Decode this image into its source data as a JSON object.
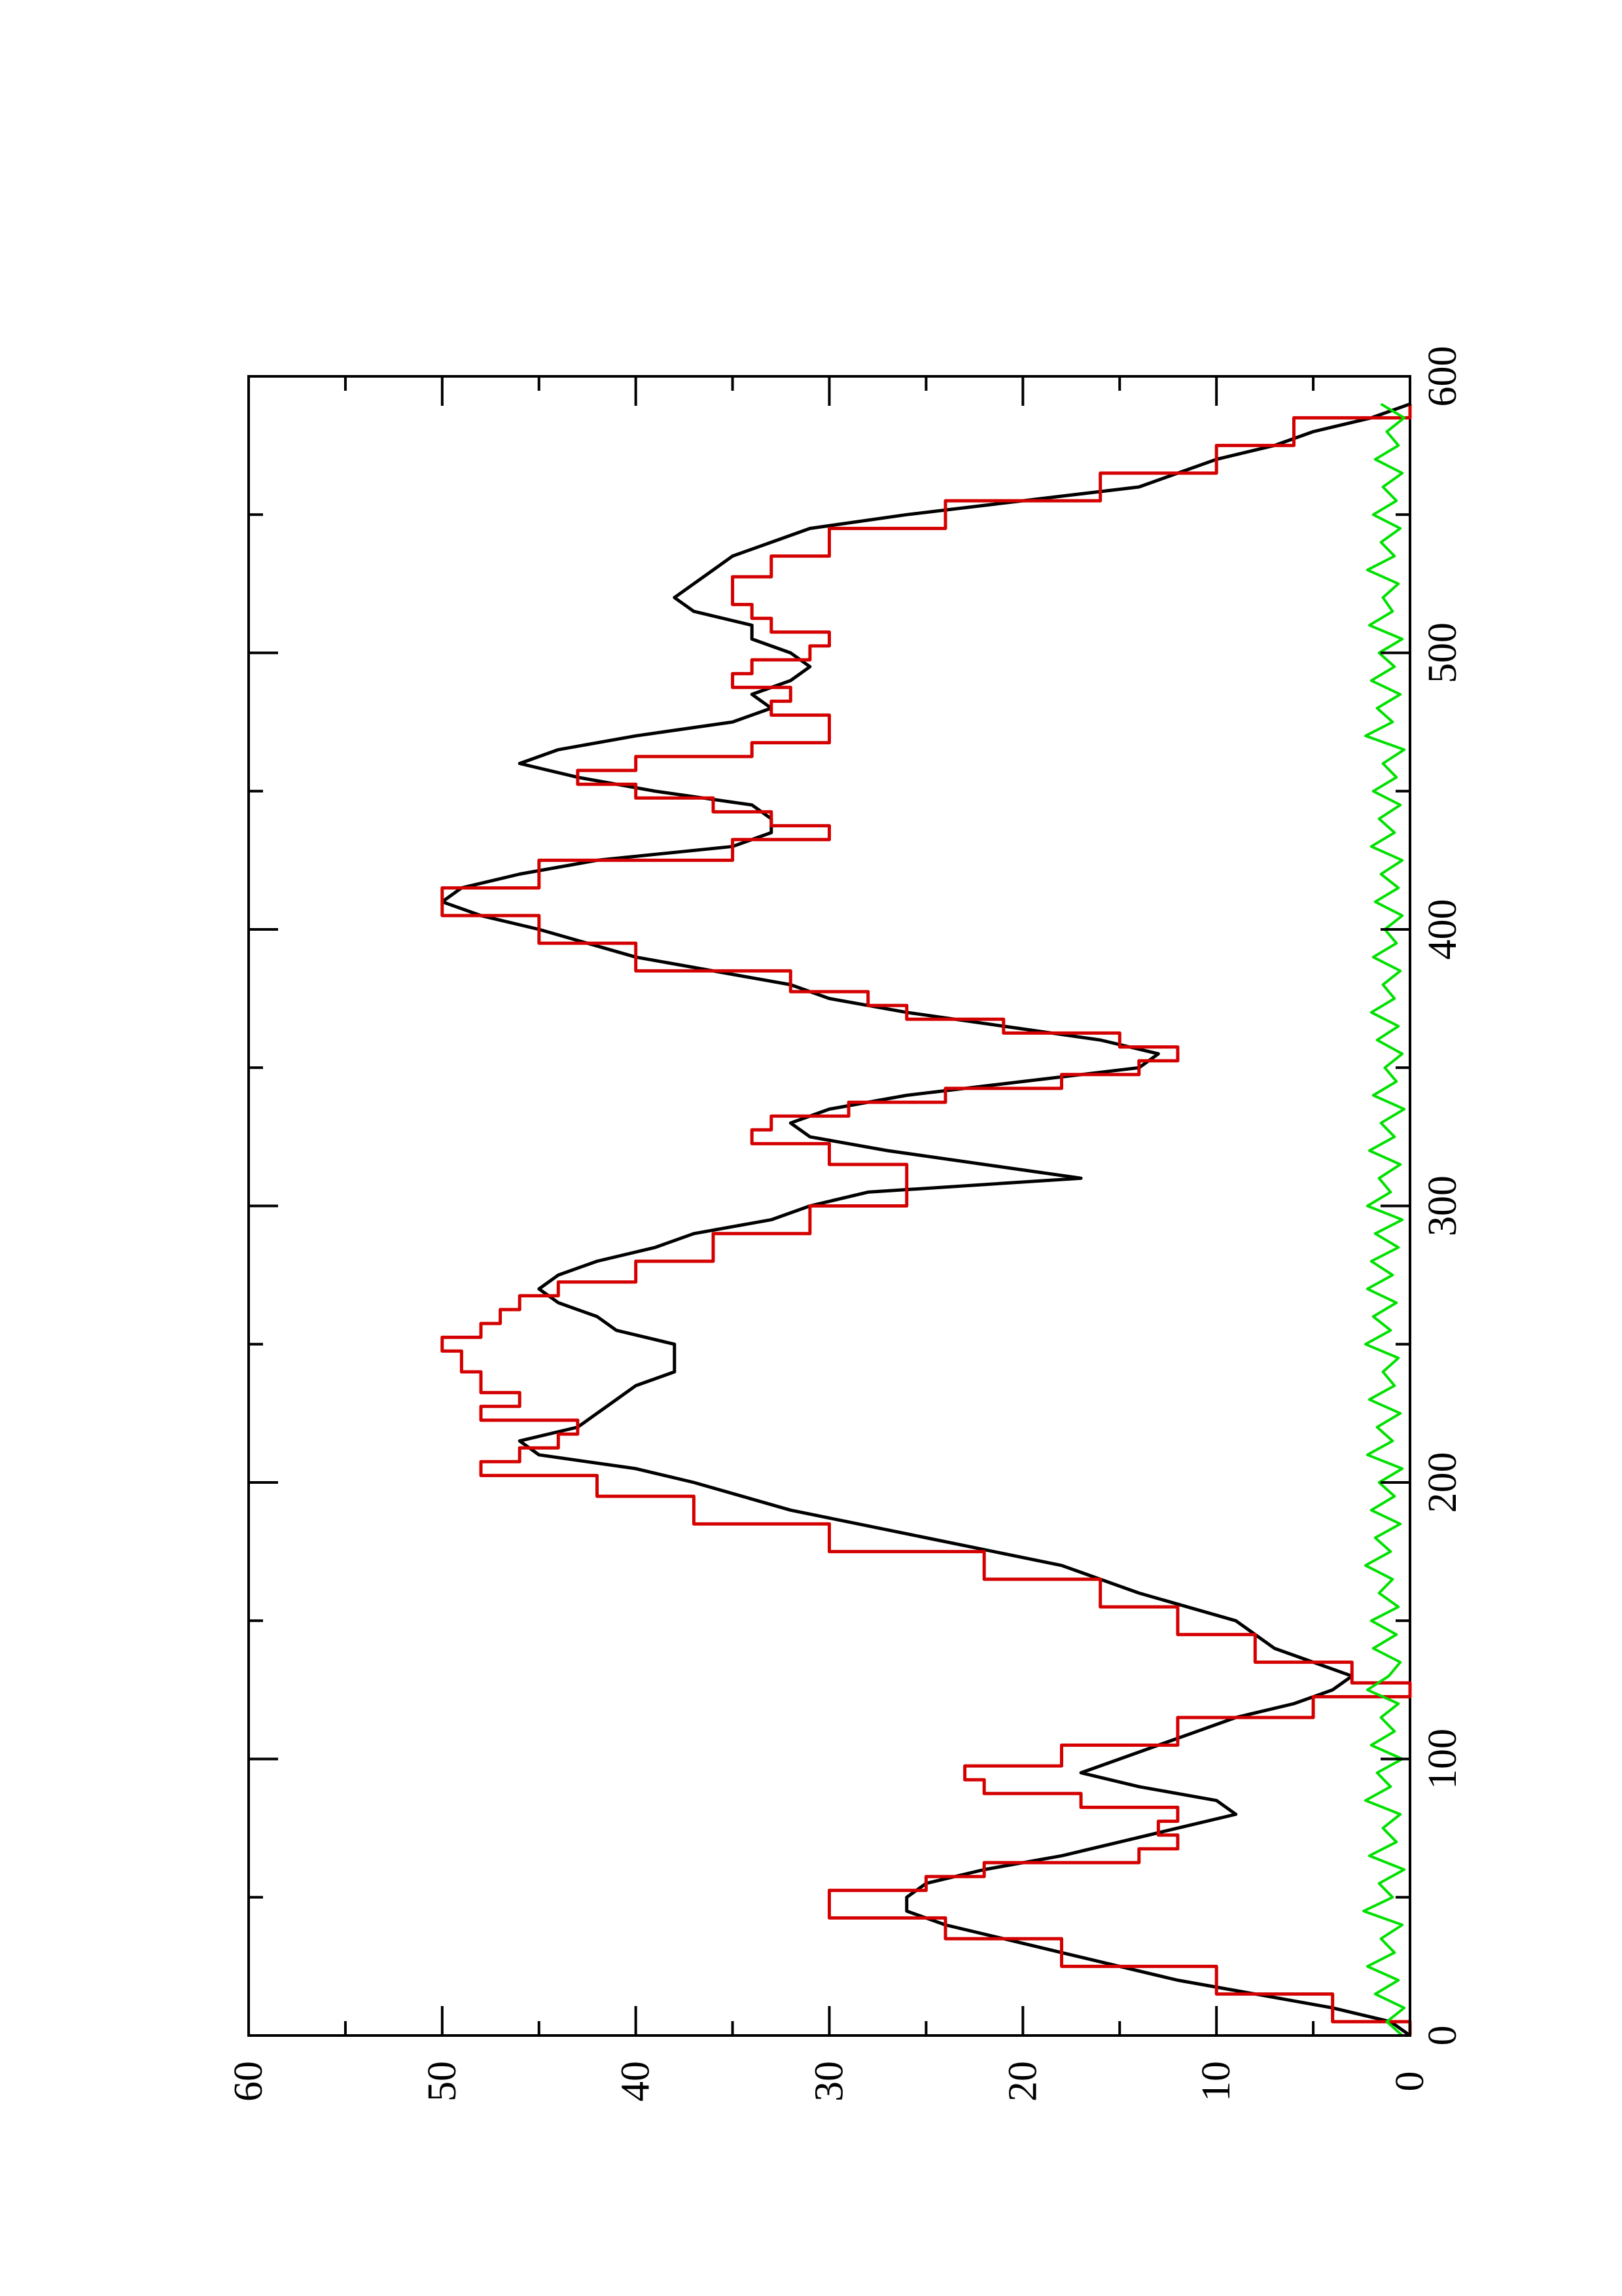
{
  "chart_data": {
    "type": "line",
    "title": "",
    "xlabel": "",
    "ylabel": "",
    "xlim": [
      0,
      600
    ],
    "ylim": [
      0,
      60
    ],
    "x_ticks": [
      0,
      100,
      200,
      300,
      400,
      500,
      600
    ],
    "y_ticks": [
      0,
      10,
      20,
      30,
      40,
      50,
      60
    ],
    "orientation": "rotated 90 degrees counter-clockwise",
    "grid": false,
    "legend": "none",
    "colors": {
      "black": "#000000",
      "red": "#d40000",
      "green": "#00e000"
    },
    "series": [
      {
        "color": "#000000",
        "style": "smooth",
        "points": [
          [
            0,
            0
          ],
          [
            5,
            1
          ],
          [
            10,
            4
          ],
          [
            15,
            8
          ],
          [
            20,
            12
          ],
          [
            25,
            15
          ],
          [
            30,
            18
          ],
          [
            35,
            21
          ],
          [
            40,
            24
          ],
          [
            45,
            26
          ],
          [
            50,
            26
          ],
          [
            55,
            25
          ],
          [
            60,
            22
          ],
          [
            65,
            18
          ],
          [
            70,
            15
          ],
          [
            75,
            12
          ],
          [
            80,
            9
          ],
          [
            85,
            10
          ],
          [
            90,
            14
          ],
          [
            95,
            17
          ],
          [
            100,
            15
          ],
          [
            105,
            13
          ],
          [
            110,
            11
          ],
          [
            115,
            9
          ],
          [
            120,
            6
          ],
          [
            125,
            4
          ],
          [
            130,
            3
          ],
          [
            135,
            5
          ],
          [
            140,
            7
          ],
          [
            150,
            9
          ],
          [
            160,
            14
          ],
          [
            170,
            18
          ],
          [
            180,
            25
          ],
          [
            190,
            32
          ],
          [
            200,
            37
          ],
          [
            205,
            40
          ],
          [
            210,
            45
          ],
          [
            215,
            46
          ],
          [
            220,
            43
          ],
          [
            225,
            42
          ],
          [
            230,
            41
          ],
          [
            235,
            40
          ],
          [
            240,
            38
          ],
          [
            245,
            38
          ],
          [
            250,
            38
          ],
          [
            255,
            41
          ],
          [
            260,
            42
          ],
          [
            265,
            44
          ],
          [
            270,
            45
          ],
          [
            275,
            44
          ],
          [
            280,
            42
          ],
          [
            285,
            39
          ],
          [
            290,
            37
          ],
          [
            295,
            33
          ],
          [
            300,
            31
          ],
          [
            305,
            28
          ],
          [
            310,
            17
          ],
          [
            315,
            22
          ],
          [
            320,
            27
          ],
          [
            325,
            31
          ],
          [
            330,
            32
          ],
          [
            335,
            30
          ],
          [
            340,
            26
          ],
          [
            345,
            20
          ],
          [
            350,
            14
          ],
          [
            355,
            13
          ],
          [
            360,
            16
          ],
          [
            365,
            21
          ],
          [
            370,
            26
          ],
          [
            375,
            30
          ],
          [
            380,
            32
          ],
          [
            390,
            40
          ],
          [
            400,
            45
          ],
          [
            405,
            48
          ],
          [
            410,
            50
          ],
          [
            415,
            49
          ],
          [
            420,
            46
          ],
          [
            425,
            42
          ],
          [
            430,
            35
          ],
          [
            435,
            33
          ],
          [
            440,
            33
          ],
          [
            445,
            34
          ],
          [
            450,
            39
          ],
          [
            455,
            43
          ],
          [
            460,
            46
          ],
          [
            465,
            44
          ],
          [
            470,
            40
          ],
          [
            475,
            35
          ],
          [
            480,
            33
          ],
          [
            485,
            34
          ],
          [
            490,
            32
          ],
          [
            495,
            31
          ],
          [
            500,
            32
          ],
          [
            505,
            34
          ],
          [
            510,
            34
          ],
          [
            515,
            37
          ],
          [
            520,
            38
          ],
          [
            525,
            37
          ],
          [
            530,
            36
          ],
          [
            535,
            35
          ],
          [
            540,
            33
          ],
          [
            545,
            31
          ],
          [
            550,
            26
          ],
          [
            555,
            20
          ],
          [
            560,
            14
          ],
          [
            565,
            12
          ],
          [
            570,
            10
          ],
          [
            575,
            7
          ],
          [
            580,
            5
          ],
          [
            585,
            2
          ],
          [
            590,
            0
          ]
        ]
      },
      {
        "color": "#d40000",
        "style": "step",
        "points": [
          [
            0,
            0
          ],
          [
            10,
            4
          ],
          [
            20,
            10
          ],
          [
            30,
            18
          ],
          [
            40,
            24
          ],
          [
            45,
            30
          ],
          [
            50,
            30
          ],
          [
            55,
            25
          ],
          [
            60,
            22
          ],
          [
            65,
            14
          ],
          [
            70,
            12
          ],
          [
            75,
            13
          ],
          [
            80,
            12
          ],
          [
            85,
            17
          ],
          [
            90,
            22
          ],
          [
            95,
            23
          ],
          [
            100,
            18
          ],
          [
            110,
            12
          ],
          [
            120,
            5
          ],
          [
            125,
            0
          ],
          [
            130,
            3
          ],
          [
            140,
            8
          ],
          [
            150,
            12
          ],
          [
            160,
            16
          ],
          [
            170,
            22
          ],
          [
            180,
            30
          ],
          [
            190,
            37
          ],
          [
            200,
            42
          ],
          [
            205,
            48
          ],
          [
            210,
            46
          ],
          [
            215,
            44
          ],
          [
            220,
            43
          ],
          [
            225,
            48
          ],
          [
            230,
            46
          ],
          [
            235,
            48
          ],
          [
            245,
            49
          ],
          [
            250,
            50
          ],
          [
            255,
            48
          ],
          [
            260,
            47
          ],
          [
            265,
            46
          ],
          [
            270,
            44
          ],
          [
            275,
            40
          ],
          [
            285,
            36
          ],
          [
            295,
            31
          ],
          [
            305,
            26
          ],
          [
            310,
            26
          ],
          [
            320,
            30
          ],
          [
            325,
            34
          ],
          [
            330,
            33
          ],
          [
            335,
            29
          ],
          [
            340,
            24
          ],
          [
            345,
            18
          ],
          [
            350,
            14
          ],
          [
            355,
            12
          ],
          [
            360,
            15
          ],
          [
            365,
            21
          ],
          [
            370,
            26
          ],
          [
            375,
            28
          ],
          [
            380,
            32
          ],
          [
            390,
            40
          ],
          [
            400,
            45
          ],
          [
            410,
            50
          ],
          [
            420,
            45
          ],
          [
            430,
            35
          ],
          [
            435,
            30
          ],
          [
            440,
            33
          ],
          [
            445,
            36
          ],
          [
            450,
            40
          ],
          [
            455,
            43
          ],
          [
            460,
            40
          ],
          [
            465,
            34
          ],
          [
            470,
            30
          ],
          [
            475,
            30
          ],
          [
            480,
            33
          ],
          [
            485,
            32
          ],
          [
            490,
            35
          ],
          [
            495,
            34
          ],
          [
            500,
            31
          ],
          [
            505,
            30
          ],
          [
            510,
            33
          ],
          [
            515,
            34
          ],
          [
            520,
            35
          ],
          [
            525,
            35
          ],
          [
            530,
            33
          ],
          [
            540,
            30
          ],
          [
            550,
            24
          ],
          [
            560,
            16
          ],
          [
            570,
            10
          ],
          [
            580,
            6
          ],
          [
            590,
            0
          ]
        ]
      },
      {
        "color": "#00e000",
        "style": "noise",
        "points": [
          [
            0,
            0.4
          ],
          [
            5,
            1.2
          ],
          [
            10,
            0.3
          ],
          [
            15,
            1.8
          ],
          [
            20,
            0.6
          ],
          [
            25,
            2.2
          ],
          [
            30,
            0.8
          ],
          [
            35,
            1.5
          ],
          [
            40,
            0.4
          ],
          [
            45,
            2.4
          ],
          [
            50,
            0.9
          ],
          [
            55,
            1.6
          ],
          [
            60,
            0.3
          ],
          [
            65,
            2.1
          ],
          [
            70,
            0.7
          ],
          [
            75,
            1.4
          ],
          [
            80,
            0.5
          ],
          [
            85,
            2.3
          ],
          [
            90,
            1.0
          ],
          [
            95,
            1.7
          ],
          [
            100,
            0.4
          ],
          [
            105,
            2.0
          ],
          [
            110,
            0.8
          ],
          [
            115,
            1.5
          ],
          [
            120,
            0.6
          ],
          [
            125,
            2.2
          ],
          [
            130,
            1.1
          ],
          [
            135,
            0.5
          ],
          [
            140,
            1.9
          ],
          [
            145,
            0.7
          ],
          [
            150,
            2.0
          ],
          [
            155,
            0.6
          ],
          [
            160,
            1.6
          ],
          [
            165,
            0.9
          ],
          [
            170,
            2.3
          ],
          [
            175,
            1.0
          ],
          [
            180,
            1.8
          ],
          [
            185,
            0.5
          ],
          [
            190,
            2.0
          ],
          [
            195,
            0.8
          ],
          [
            200,
            1.6
          ],
          [
            205,
            0.4
          ],
          [
            210,
            2.2
          ],
          [
            215,
            0.9
          ],
          [
            220,
            1.7
          ],
          [
            225,
            0.5
          ],
          [
            230,
            2.1
          ],
          [
            235,
            0.8
          ],
          [
            240,
            1.4
          ],
          [
            245,
            0.6
          ],
          [
            250,
            2.3
          ],
          [
            255,
            1.0
          ],
          [
            260,
            1.9
          ],
          [
            265,
            0.7
          ],
          [
            270,
            2.2
          ],
          [
            275,
            0.9
          ],
          [
            280,
            2.0
          ],
          [
            285,
            0.6
          ],
          [
            290,
            1.8
          ],
          [
            295,
            0.4
          ],
          [
            300,
            2.2
          ],
          [
            305,
            1.0
          ],
          [
            310,
            1.6
          ],
          [
            315,
            0.5
          ],
          [
            320,
            2.1
          ],
          [
            325,
            0.8
          ],
          [
            330,
            1.5
          ],
          [
            335,
            0.3
          ],
          [
            340,
            1.9
          ],
          [
            345,
            0.7
          ],
          [
            350,
            1.3
          ],
          [
            355,
            0.4
          ],
          [
            360,
            1.7
          ],
          [
            365,
            0.6
          ],
          [
            370,
            2.0
          ],
          [
            375,
            0.8
          ],
          [
            380,
            1.4
          ],
          [
            385,
            0.5
          ],
          [
            390,
            1.9
          ],
          [
            395,
            0.7
          ],
          [
            400,
            1.3
          ],
          [
            405,
            0.4
          ],
          [
            410,
            1.8
          ],
          [
            415,
            0.6
          ],
          [
            420,
            1.5
          ],
          [
            425,
            0.4
          ],
          [
            430,
            2.0
          ],
          [
            435,
            0.8
          ],
          [
            440,
            1.6
          ],
          [
            445,
            0.5
          ],
          [
            450,
            1.9
          ],
          [
            455,
            0.7
          ],
          [
            460,
            1.4
          ],
          [
            465,
            0.3
          ],
          [
            470,
            2.3
          ],
          [
            475,
            0.9
          ],
          [
            480,
            1.7
          ],
          [
            485,
            0.5
          ],
          [
            490,
            2.0
          ],
          [
            495,
            0.8
          ],
          [
            500,
            1.6
          ],
          [
            505,
            0.4
          ],
          [
            510,
            2.1
          ],
          [
            515,
            0.9
          ],
          [
            520,
            1.4
          ],
          [
            525,
            0.6
          ],
          [
            530,
            2.2
          ],
          [
            535,
            0.8
          ],
          [
            540,
            1.5
          ],
          [
            545,
            0.5
          ],
          [
            550,
            1.9
          ],
          [
            555,
            0.7
          ],
          [
            560,
            1.4
          ],
          [
            565,
            0.4
          ],
          [
            570,
            1.8
          ],
          [
            575,
            0.6
          ],
          [
            580,
            1.2
          ],
          [
            585,
            0.3
          ],
          [
            590,
            1.5
          ]
        ]
      }
    ]
  }
}
